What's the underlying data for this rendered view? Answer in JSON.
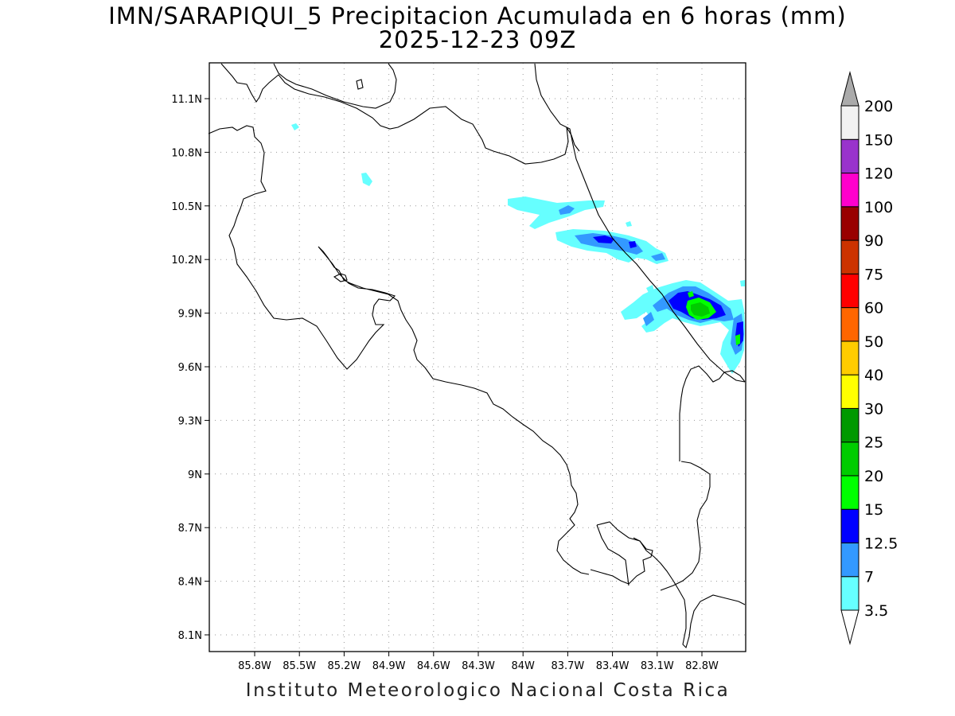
{
  "map": {
    "title": "IMN/SARAPIQUI_5 Precipitacion Acumulada en 6 horas (mm)",
    "subtitle": "2025-12-23 09Z",
    "footer": "Instituto Meteorologico Nacional Costa Rica",
    "lon_range": [
      -86.0,
      -82.5
    ],
    "lat_range": [
      8.0,
      11.3
    ],
    "x_ticks": [
      {
        "value": -85.8,
        "label": "85.8W"
      },
      {
        "value": -85.5,
        "label": "85.5W"
      },
      {
        "value": -85.2,
        "label": "85.2W"
      },
      {
        "value": -84.9,
        "label": "84.9W"
      },
      {
        "value": -84.6,
        "label": "84.6W"
      },
      {
        "value": -84.3,
        "label": "84.3W"
      },
      {
        "value": -84.0,
        "label": "84W"
      },
      {
        "value": -83.7,
        "label": "83.7W"
      },
      {
        "value": -83.4,
        "label": "83.4W"
      },
      {
        "value": -83.1,
        "label": "83.1W"
      },
      {
        "value": -82.8,
        "label": "82.8W"
      }
    ],
    "y_ticks": [
      {
        "value": 11.1,
        "label": "11.1N"
      },
      {
        "value": 10.8,
        "label": "10.8N"
      },
      {
        "value": 10.5,
        "label": "10.5N"
      },
      {
        "value": 10.2,
        "label": "10.2N"
      },
      {
        "value": 9.9,
        "label": "9.9N"
      },
      {
        "value": 9.6,
        "label": "9.6N"
      },
      {
        "value": 9.3,
        "label": "9.3N"
      },
      {
        "value": 9.0,
        "label": "9N"
      },
      {
        "value": 8.7,
        "label": "8.7N"
      },
      {
        "value": 8.4,
        "label": "8.4N"
      },
      {
        "value": 8.1,
        "label": "8.1N"
      }
    ],
    "grid": "dotted"
  },
  "colorbar": {
    "levels": [
      "3.5",
      "7",
      "12.5",
      "15",
      "20",
      "25",
      "30",
      "40",
      "50",
      "60",
      "75",
      "90",
      "100",
      "120",
      "150",
      "200"
    ],
    "colors": [
      "#ffffff",
      "#66ffff",
      "#3399ff",
      "#0000ff",
      "#00ff00",
      "#00cc00",
      "#009900",
      "#ffff00",
      "#ffcc00",
      "#ff6600",
      "#ff0000",
      "#cc3300",
      "#990000",
      "#ff00cc",
      "#9933cc",
      "#f2f2f2",
      "#aaaaaa"
    ]
  }
}
